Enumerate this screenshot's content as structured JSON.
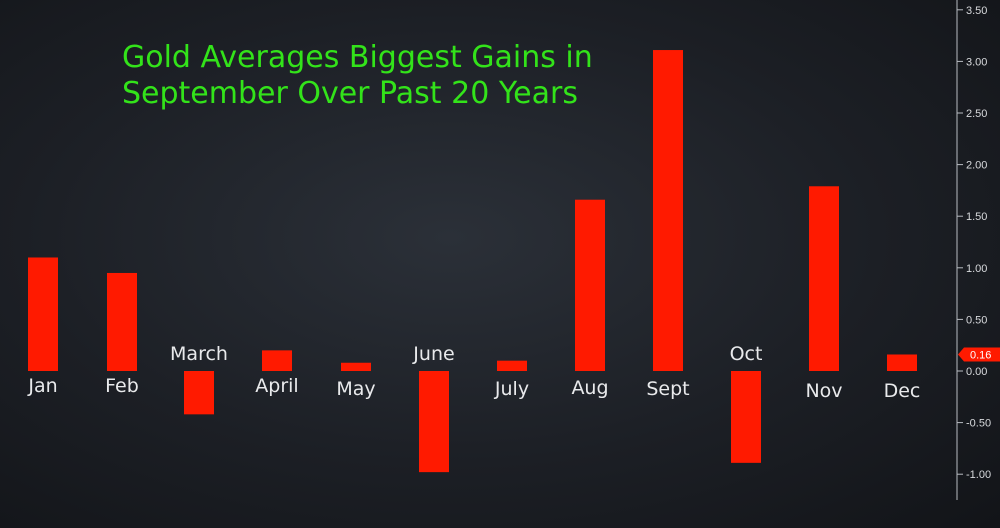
{
  "colors": {
    "bar": "#ff1a00",
    "title": "#33e31a",
    "axis": "#b8bcc2",
    "tick_text": "#d8dadd",
    "category_text": "#e9eaec",
    "last_value_badge": "#ff1a00"
  },
  "chart_data": {
    "type": "bar",
    "title_lines": [
      "Gold Averages Biggest Gains in",
      "September Over Past 20 Years"
    ],
    "categories": [
      "Jan",
      "Feb",
      "March",
      "April",
      "May",
      "June",
      "July",
      "Aug",
      "Sept",
      "Oct",
      "Nov",
      "Dec"
    ],
    "values": [
      1.1,
      0.95,
      -0.42,
      0.2,
      0.08,
      -0.98,
      0.1,
      1.66,
      3.11,
      -0.89,
      1.79,
      0.16
    ],
    "ylim": [
      -1.25,
      3.6
    ],
    "y_ticks": [
      -1.0,
      -0.5,
      0.0,
      0.5,
      1.0,
      1.5,
      2.0,
      2.5,
      3.0,
      3.5
    ],
    "y_tick_labels": [
      "-1.00",
      "-0.50",
      "0.00",
      "0.50",
      "1.00",
      "1.50",
      "2.00",
      "2.50",
      "3.00",
      "3.50"
    ],
    "y_axis_side": "right",
    "grid": false,
    "legend": "none",
    "last_value_label": "0.16"
  }
}
